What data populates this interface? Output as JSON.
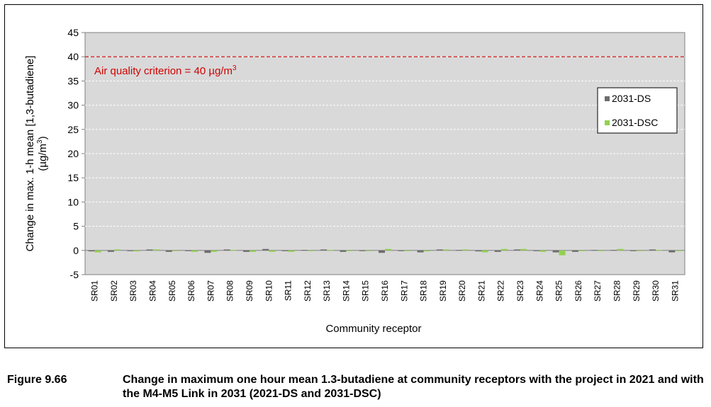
{
  "chart_data": {
    "type": "bar",
    "xlabel": "Community receptor",
    "ylabel_line1": "Change in max. 1-h mean [1,3-butadiene]",
    "ylabel_line2_prefix": "(µg/m",
    "ylabel_line2_sup": "3",
    "ylabel_line2_suffix": ")",
    "ylim": [
      -5,
      45
    ],
    "yticks": [
      -5,
      0,
      5,
      10,
      15,
      20,
      25,
      30,
      35,
      40,
      45
    ],
    "grid": true,
    "legend_position": "right",
    "categories": [
      "SR01",
      "SR02",
      "SR03",
      "SR04",
      "SR05",
      "SR06",
      "SR07",
      "SR08",
      "SR09",
      "SR10",
      "SR11",
      "SR12",
      "SR13",
      "SR14",
      "SR15",
      "SR16",
      "SR17",
      "SR18",
      "SR19",
      "SR20",
      "SR21",
      "SR22",
      "SR23",
      "SR24",
      "SR25",
      "SR26",
      "SR27",
      "SR28",
      "SR29",
      "SR30",
      "SR31"
    ],
    "series": [
      {
        "name": "2031-DS",
        "color": "#6d6d6d",
        "values": [
          -0.2,
          -0.3,
          -0.1,
          0.2,
          -0.3,
          -0.1,
          -0.5,
          0.2,
          -0.3,
          0.3,
          -0.1,
          0.1,
          0.2,
          -0.3,
          -0.1,
          -0.5,
          -0.1,
          -0.4,
          0.2,
          0.1,
          -0.2,
          -0.3,
          0.2,
          -0.1,
          -0.4,
          -0.3,
          0.1,
          0.1,
          -0.1,
          0.2,
          -0.4
        ]
      },
      {
        "name": "2031-DSC",
        "color": "#92d050",
        "values": [
          -0.4,
          0.2,
          -0.2,
          0.2,
          -0.1,
          -0.3,
          -0.3,
          0.1,
          -0.3,
          -0.3,
          -0.3,
          -0.1,
          0.1,
          -0.1,
          -0.1,
          0.3,
          -0.1,
          -0.2,
          0.2,
          0.2,
          -0.4,
          0.3,
          0.3,
          -0.3,
          -1.0,
          -0.1,
          -0.1,
          0.3,
          -0.1,
          0.1,
          -0.1
        ]
      }
    ],
    "reference_line": {
      "value": 40,
      "label_prefix": "Air quality criterion = 40 µg/m",
      "label_sup": "3",
      "color": "#d00000"
    }
  },
  "caption": {
    "label": "Figure 9.66",
    "text": "Change in maximum one hour mean 1.3-butadiene at community receptors with the project in 2021 and with the M4-M5 Link in 2031 (2021-DS and 2031-DSC)"
  }
}
